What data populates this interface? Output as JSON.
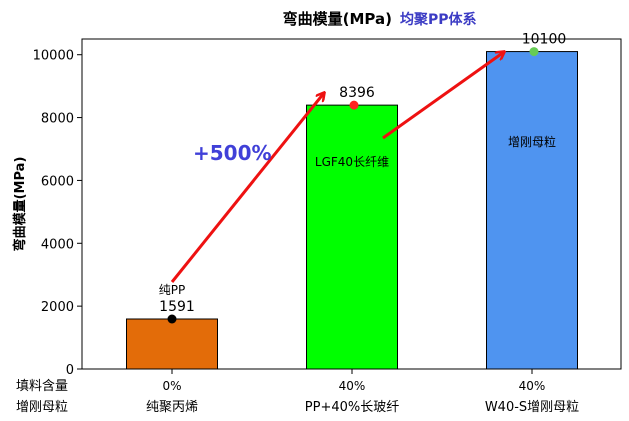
{
  "chart_data": {
    "type": "bar",
    "title": "弯曲模量(MPa)",
    "subtitle": "均聚PP体系",
    "ylabel": "弯曲模量(MPa)",
    "xlabel": "",
    "ylim": [
      0,
      10500
    ],
    "yticks": [
      "0",
      "2000",
      "4000",
      "6000",
      "8000",
      "10000"
    ],
    "ytick_values": [
      0,
      2000,
      4000,
      6000,
      8000,
      10000
    ],
    "row_headers": [
      "填料含量",
      "增刚母粒"
    ],
    "categories": [
      {
        "filler": "0%",
        "name": "纯聚丙烯"
      },
      {
        "filler": "40%",
        "name": "PP+40%长玻纤"
      },
      {
        "filler": "40%",
        "name": "W40-S增刚母粒"
      }
    ],
    "values": [
      1591,
      8396,
      10100
    ],
    "data_labels": [
      "1591",
      "8396",
      "10100"
    ],
    "bar_labels": [
      "纯PP",
      "LGF40长纤维",
      "增刚母粒"
    ],
    "colors": [
      "#e36c09",
      "#00ff00",
      "#4f94f0"
    ],
    "marker_colors": [
      "#000000",
      "#ff2020",
      "#66cc55"
    ],
    "annotation": "+500%",
    "annotation_color": "#4040d8",
    "arrow_color": "#ee1111",
    "grid": false
  }
}
